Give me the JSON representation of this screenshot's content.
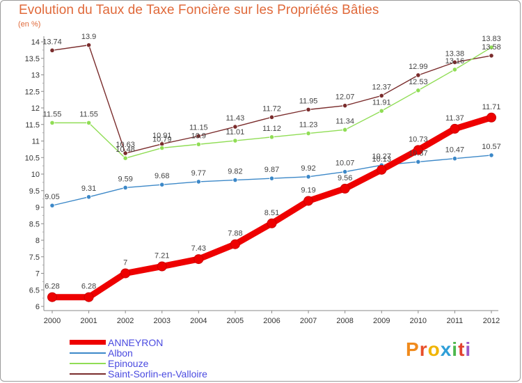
{
  "title": "Evolution du Taux de Taxe Foncière sur les Propriétés Bâties",
  "unit": "(en %)",
  "logo": {
    "letters": [
      "P",
      "r",
      "o",
      "x",
      "i",
      "t",
      "i"
    ],
    "colors": [
      "#f08a1c",
      "#e84f2a",
      "#f0b400",
      "#2f9fd8",
      "#4db84d",
      "#e2422f",
      "#9c58c9"
    ]
  },
  "chart_data": {
    "type": "line",
    "title": "Evolution du Taux de Taxe Foncière sur les Propriétés Bâties",
    "ylabel": "(en %)",
    "xlabel": "",
    "x": [
      "2000",
      "2001",
      "2002",
      "2003",
      "2004",
      "2005",
      "2006",
      "2007",
      "2008",
      "2009",
      "2010",
      "2011",
      "2012"
    ],
    "ylim": [
      6,
      14
    ],
    "yticks": [
      "6",
      "6.5",
      "7",
      "7.5",
      "8",
      "8.5",
      "9",
      "9.5",
      "10",
      "10.5",
      "11",
      "11.5",
      "12",
      "12.5",
      "13",
      "13.5",
      "14"
    ],
    "series": [
      {
        "name": "ANNEYRON",
        "color": "#ee0000",
        "values": [
          6.28,
          6.28,
          7,
          7.21,
          7.43,
          7.88,
          8.51,
          9.19,
          9.56,
          10.13,
          10.73,
          11.37,
          11.71
        ],
        "labels": [
          "6.28",
          "6.28",
          "7",
          "7.21",
          "7.43",
          "7.88",
          "8.51",
          "9.19",
          "9.56",
          "10.13",
          "10.73",
          "11.37",
          "11.71"
        ]
      },
      {
        "name": "Albon",
        "color": "#3c88c8",
        "values": [
          9.05,
          9.31,
          9.59,
          9.68,
          9.77,
          9.82,
          9.87,
          9.92,
          10.07,
          10.27,
          10.37,
          10.47,
          10.57
        ],
        "labels": [
          "9.05",
          "9.31",
          "9.59",
          "9.68",
          "9.77",
          "9.82",
          "9.87",
          "9.92",
          "10.07",
          "10.27",
          "10.37",
          "10.47",
          "10.57"
        ]
      },
      {
        "name": "Epinouze",
        "color": "#90dd55",
        "values": [
          11.55,
          11.55,
          10.48,
          10.79,
          10.9,
          11.01,
          11.12,
          11.23,
          11.34,
          11.91,
          12.53,
          13.16,
          13.83
        ],
        "labels": [
          "11.55",
          "11.55",
          "10.48",
          "10.79",
          "10.9",
          "11.01",
          "11.12",
          "11.23",
          "11.34",
          "11.91",
          "12.53",
          "13.16",
          "13.83"
        ]
      },
      {
        "name": "Saint-Sorlin-en-Valloire",
        "color": "#7a2c2c",
        "values": [
          13.74,
          13.9,
          10.63,
          10.91,
          11.15,
          11.43,
          11.72,
          11.95,
          12.07,
          12.37,
          12.99,
          13.38,
          13.58
        ],
        "labels": [
          "13.74",
          "13.9",
          "10.63",
          "10.91",
          "11.15",
          "11.43",
          "11.72",
          "11.95",
          "12.07",
          "12.37",
          "12.99",
          "13.38",
          "13.58"
        ]
      }
    ],
    "legend_position": "bottom-left",
    "grid": false
  }
}
